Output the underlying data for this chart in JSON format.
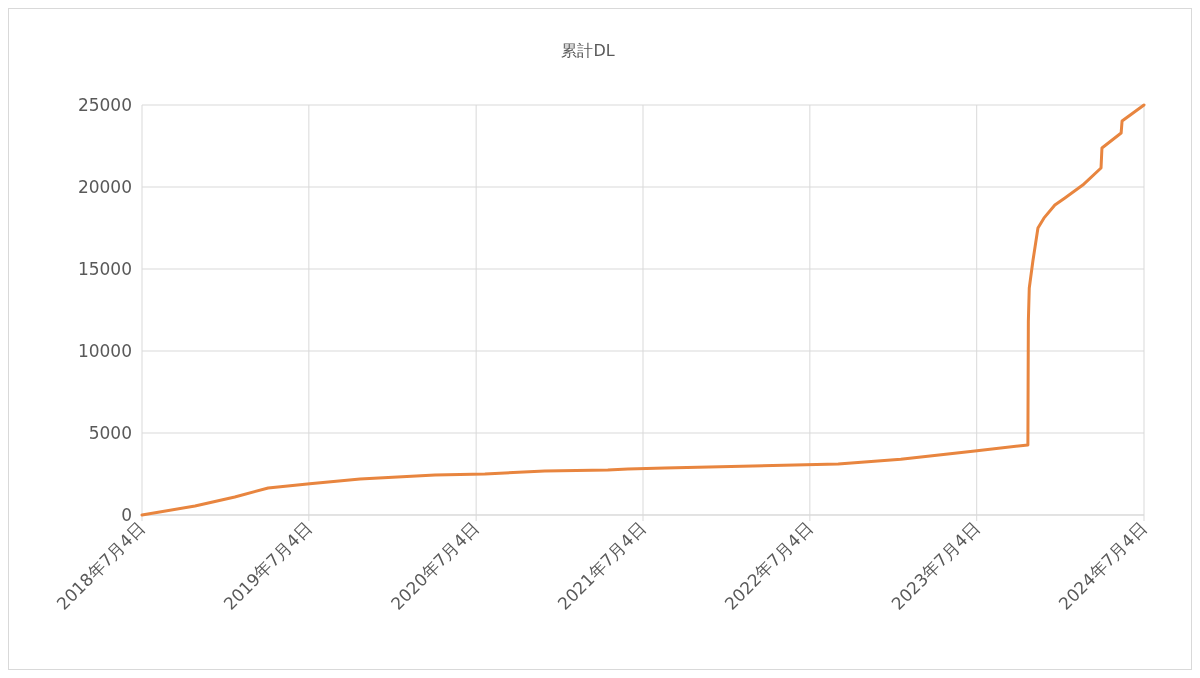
{
  "chart_data": {
    "type": "line",
    "title": "累計DL",
    "x": [
      "2018-07-04",
      "2018-10-28",
      "2019-01-23",
      "2019-04-06",
      "2019-07-06",
      "2019-10-24",
      "2020-04-05",
      "2020-07-23",
      "2020-12-01",
      "2021-04-18",
      "2021-06-01",
      "2021-08-21",
      "2022-06-01",
      "2022-09-04",
      "2023-01-19",
      "2023-06-30",
      "2023-10-24",
      "2023-10-25",
      "2023-10-27",
      "2023-11-04",
      "2023-11-15",
      "2023-11-28",
      "2023-12-22",
      "2024-01-13",
      "2024-02-21",
      "2024-04-01",
      "2024-04-03",
      "2024-05-15",
      "2024-05-17",
      "2024-07-04"
    ],
    "series": [
      {
        "color": "#e8853f",
        "values": [
          0,
          550,
          1100,
          1650,
          1900,
          2200,
          2440,
          2500,
          2680,
          2740,
          2800,
          2870,
          3050,
          3110,
          3400,
          3900,
          4270,
          11800,
          13840,
          15500,
          17500,
          18100,
          18900,
          19330,
          20120,
          21160,
          22380,
          23290,
          24020,
          25000
        ]
      }
    ],
    "xlim": [
      "2018-07-04",
      "2024-07-04"
    ],
    "xticks": [
      {
        "value": "2018-07-04",
        "label": "2018年7月4日"
      },
      {
        "value": "2019-07-04",
        "label": "2019年7月4日"
      },
      {
        "value": "2020-07-04",
        "label": "2020年7月4日"
      },
      {
        "value": "2021-07-04",
        "label": "2021年7月4日"
      },
      {
        "value": "2022-07-04",
        "label": "2022年7月4日"
      },
      {
        "value": "2023-07-04",
        "label": "2023年7月4日"
      },
      {
        "value": "2024-07-04",
        "label": "2024年7月4日"
      }
    ],
    "ylim": [
      0,
      25000
    ],
    "yticks": [
      0,
      5000,
      10000,
      15000,
      20000,
      25000
    ],
    "grid": true,
    "marker": "none",
    "line_style": "solid"
  }
}
